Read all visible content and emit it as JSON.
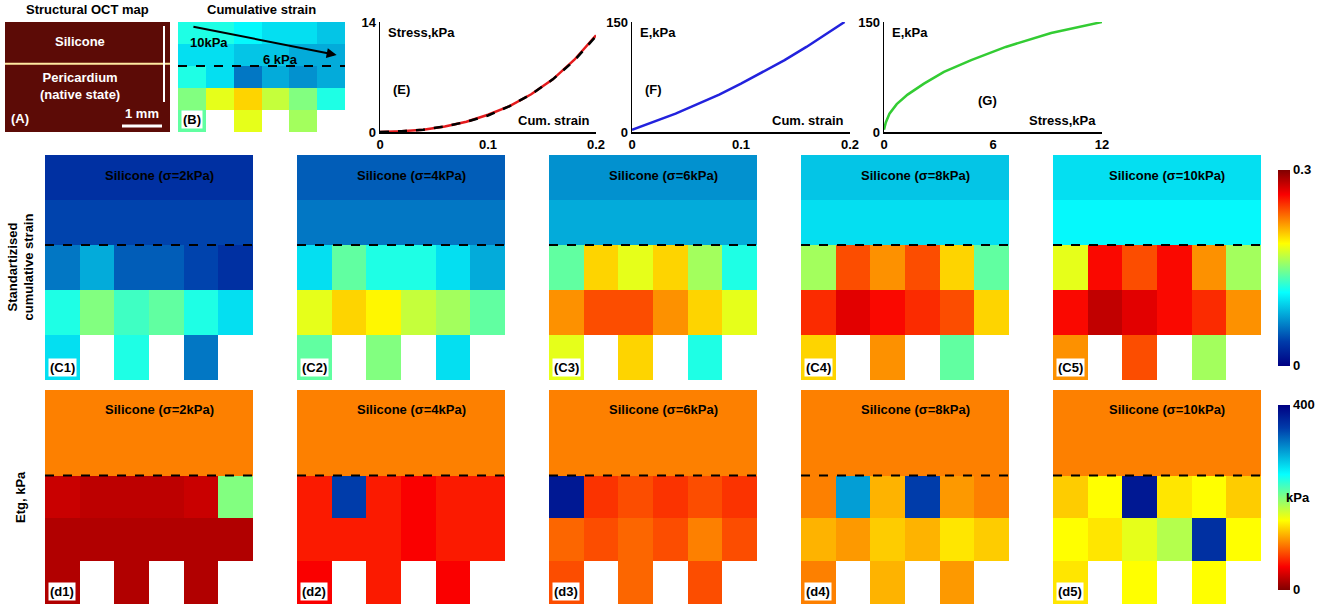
{
  "chart_data": [
    {
      "panel": "(A)",
      "type": "diagram",
      "title": "Structural OCT map",
      "layers": [
        "Silicone",
        "Pericardium (native state)"
      ],
      "scale_bar": "1 mm"
    },
    {
      "panel": "(B)",
      "type": "heatmap",
      "title": "Cumulative strain",
      "arrow_labels": [
        "10kPa",
        "6 kPa"
      ],
      "zlim": [
        0,
        0.3
      ],
      "color": "jet",
      "tick_labels": false,
      "z": [
        [
          0.12,
          0.12,
          0.11,
          0.1,
          0.1,
          0.09
        ],
        [
          0.1,
          0.1,
          0.09,
          0.09,
          0.08,
          0.08
        ],
        [
          0.12,
          0.1,
          0.06,
          0.08,
          0.07,
          0.08
        ],
        [
          0.15,
          0.18,
          0.2,
          0.17,
          0.15,
          0.12
        ],
        [
          0.14,
          null,
          0.18,
          null,
          0.16,
          null
        ]
      ]
    },
    {
      "panel": "(E)",
      "type": "line",
      "y_label": "Stress,kPa",
      "x_label": "Cum. strain",
      "x": [
        0,
        0.02,
        0.04,
        0.06,
        0.08,
        0.1,
        0.12,
        0.14,
        0.16,
        0.18,
        0.2
      ],
      "series": [
        {
          "color": "#e41a1c",
          "line_style": "solid",
          "values": [
            0,
            0.1,
            0.3,
            0.7,
            1.3,
            2.2,
            3.3,
            4.8,
            6.7,
            9.2,
            12.3
          ]
        },
        {
          "color": "#000000",
          "line_style": "dash",
          "values": [
            0,
            0.1,
            0.3,
            0.7,
            1.3,
            2.1,
            3.3,
            4.8,
            6.7,
            9.1,
            12.2
          ]
        }
      ],
      "xlim": [
        0,
        0.2
      ],
      "ylim": [
        0,
        14
      ],
      "xticks": [
        0,
        0.1,
        0.2
      ],
      "yticks": [
        0,
        14
      ]
    },
    {
      "panel": "(F)",
      "type": "line",
      "y_label": "E,kPa",
      "x_label": "Cum. strain",
      "x": [
        0,
        0.02,
        0.04,
        0.06,
        0.08,
        0.1,
        0.12,
        0.14,
        0.16,
        0.18,
        0.195
      ],
      "series": [
        {
          "color": "#2222dd",
          "line_style": "solid",
          "values": [
            3,
            13.5,
            25,
            38,
            51,
            66,
            82,
            98,
            116,
            135,
            150
          ]
        }
      ],
      "xlim": [
        0,
        0.2
      ],
      "ylim": [
        0,
        150
      ],
      "xticks": [
        0,
        0.1,
        0.2
      ],
      "yticks": [
        0,
        150
      ]
    },
    {
      "panel": "(G)",
      "type": "line",
      "y_label": "E,kPa",
      "x_label": "Stress,kPa",
      "x": [
        0,
        0.1,
        0.3,
        0.7,
        1.3,
        2.2,
        3.3,
        4.8,
        6.7,
        9.2,
        12
      ],
      "series": [
        {
          "color": "#33cc33",
          "line_style": "solid",
          "values": [
            3,
            13,
            25,
            38,
            51,
            66,
            82,
            98,
            116,
            135,
            150
          ]
        }
      ],
      "xlim": [
        0,
        12
      ],
      "ylim": [
        0,
        150
      ],
      "xticks": [
        0,
        6,
        12
      ],
      "yticks": [
        0,
        150
      ]
    },
    {
      "type": "heatmap_row",
      "label": "Standartizised cumulative strain",
      "zlim": [
        0,
        0.3
      ],
      "colorbar_ticks": [
        0,
        0.3
      ],
      "color": "jet",
      "tick_labels": false,
      "panels": [
        {
          "panel": "(C1)",
          "text": "Silicone (σ=2kPa)",
          "z": [
            [
              0.03,
              0.03,
              0.03,
              0.03,
              0.03,
              0.03
            ],
            [
              0.04,
              0.04,
              0.04,
              0.04,
              0.04,
              0.04
            ],
            [
              0.06,
              0.08,
              0.05,
              0.05,
              0.04,
              0.03
            ],
            [
              0.12,
              0.15,
              0.13,
              0.14,
              0.12,
              0.1
            ],
            [
              0.1,
              null,
              0.12,
              null,
              0.06,
              null
            ]
          ]
        },
        {
          "panel": "(C2)",
          "text": "Silicone (σ=4kPa)",
          "z": [
            [
              0.05,
              0.05,
              0.05,
              0.05,
              0.05,
              0.05
            ],
            [
              0.06,
              0.06,
              0.06,
              0.06,
              0.06,
              0.06
            ],
            [
              0.1,
              0.14,
              0.12,
              0.12,
              0.1,
              0.08
            ],
            [
              0.18,
              0.2,
              0.19,
              0.17,
              0.16,
              0.14
            ],
            [
              0.14,
              null,
              0.15,
              null,
              0.1,
              null
            ]
          ]
        },
        {
          "panel": "(C3)",
          "text": "Silicone (σ=6kPa)",
          "z": [
            [
              0.07,
              0.07,
              0.07,
              0.07,
              0.07,
              0.07
            ],
            [
              0.08,
              0.08,
              0.08,
              0.08,
              0.08,
              0.08
            ],
            [
              0.14,
              0.2,
              0.18,
              0.2,
              0.16,
              0.12
            ],
            [
              0.22,
              0.24,
              0.24,
              0.22,
              0.2,
              0.18
            ],
            [
              0.18,
              null,
              0.2,
              null,
              0.12,
              null
            ]
          ]
        },
        {
          "panel": "(C4)",
          "text": "Silicone (σ=8kPa)",
          "z": [
            [
              0.09,
              0.09,
              0.09,
              0.09,
              0.09,
              0.09
            ],
            [
              0.1,
              0.1,
              0.1,
              0.1,
              0.1,
              0.1
            ],
            [
              0.16,
              0.24,
              0.22,
              0.24,
              0.2,
              0.14
            ],
            [
              0.25,
              0.27,
              0.26,
              0.25,
              0.24,
              0.2
            ],
            [
              0.2,
              null,
              0.22,
              null,
              0.14,
              null
            ]
          ]
        },
        {
          "panel": "(C5)",
          "text": "Silicone (σ=10kPa)",
          "z": [
            [
              0.1,
              0.1,
              0.1,
              0.1,
              0.1,
              0.1
            ],
            [
              0.11,
              0.11,
              0.11,
              0.11,
              0.11,
              0.11
            ],
            [
              0.18,
              0.26,
              0.24,
              0.26,
              0.22,
              0.16
            ],
            [
              0.26,
              0.28,
              0.27,
              0.26,
              0.25,
              0.22
            ],
            [
              0.22,
              null,
              0.24,
              null,
              0.16,
              null
            ]
          ]
        }
      ]
    },
    {
      "type": "heatmap_row",
      "label": "Etg, kPa",
      "zlim": [
        0,
        400
      ],
      "colorbar_ticks": [
        0,
        400
      ],
      "colorbar_title": "kPa",
      "color": "jet_r",
      "tick_labels": false,
      "panels": [
        {
          "panel": "(d1)",
          "text": "Silicone (σ=2kPa)",
          "z": [
            [
              100,
              100,
              100,
              100,
              100,
              100
            ],
            [
              100,
              100,
              100,
              100,
              100,
              100
            ],
            [
              30,
              25,
              25,
              25,
              30,
              200
            ],
            [
              20,
              20,
              20,
              20,
              20,
              20
            ],
            [
              20,
              null,
              20,
              null,
              20,
              null
            ]
          ]
        },
        {
          "panel": "(d2)",
          "text": "Silicone (σ=4kPa)",
          "z": [
            [
              100,
              100,
              100,
              100,
              100,
              100
            ],
            [
              100,
              100,
              100,
              100,
              100,
              100
            ],
            [
              60,
              350,
              60,
              50,
              60,
              60
            ],
            [
              60,
              60,
              60,
              50,
              60,
              60
            ],
            [
              50,
              null,
              60,
              null,
              50,
              null
            ]
          ]
        },
        {
          "panel": "(d3)",
          "text": "Silicone (σ=6kPa)",
          "z": [
            [
              100,
              100,
              100,
              100,
              100,
              100
            ],
            [
              100,
              100,
              100,
              100,
              100,
              100
            ],
            [
              380,
              70,
              80,
              70,
              80,
              70
            ],
            [
              90,
              80,
              90,
              80,
              100,
              80
            ],
            [
              80,
              null,
              90,
              null,
              80,
              null
            ]
          ]
        },
        {
          "panel": "(d4)",
          "text": "Silicone (σ=8kPa)",
          "z": [
            [
              100,
              100,
              100,
              100,
              100,
              100
            ],
            [
              100,
              100,
              100,
              100,
              100,
              100
            ],
            [
              100,
              300,
              120,
              350,
              110,
              100
            ],
            [
              120,
              110,
              130,
              120,
              140,
              130
            ],
            [
              100,
              null,
              120,
              null,
              110,
              null
            ]
          ]
        },
        {
          "panel": "(d5)",
          "text": "Silicone (σ=10kPa)",
          "z": [
            [
              100,
              100,
              100,
              100,
              100,
              100
            ],
            [
              100,
              100,
              100,
              100,
              100,
              100
            ],
            [
              130,
              150,
              380,
              140,
              150,
              130
            ],
            [
              150,
              140,
              160,
              180,
              360,
              150
            ],
            [
              140,
              null,
              150,
              null,
              150,
              null
            ]
          ]
        }
      ]
    }
  ]
}
